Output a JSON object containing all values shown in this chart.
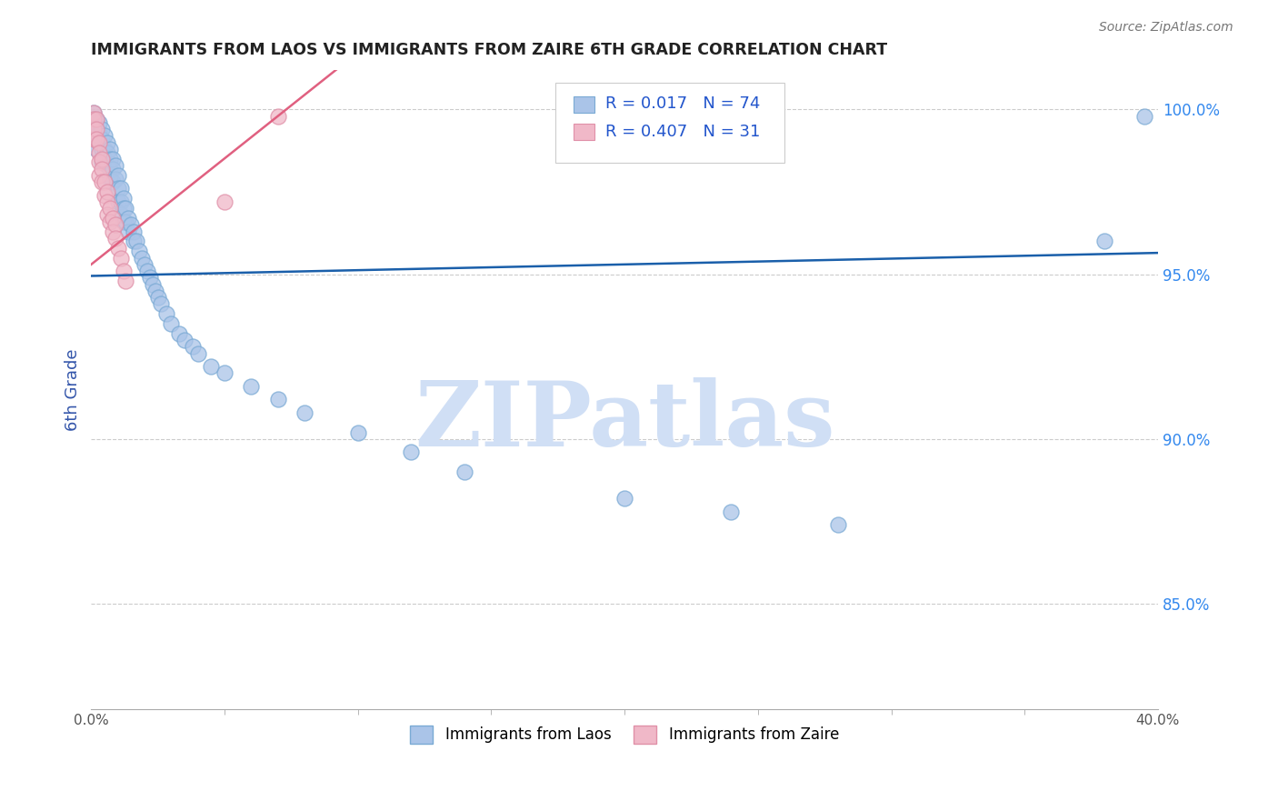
{
  "title": "IMMIGRANTS FROM LAOS VS IMMIGRANTS FROM ZAIRE 6TH GRADE CORRELATION CHART",
  "source": "Source: ZipAtlas.com",
  "ylabel": "6th Grade",
  "ylabel_color": "#3355aa",
  "right_ytick_labels": [
    "100.0%",
    "95.0%",
    "90.0%",
    "85.0%"
  ],
  "right_ytick_values": [
    1.0,
    0.95,
    0.9,
    0.85
  ],
  "x_min": 0.0,
  "x_max": 0.4,
  "y_min": 0.818,
  "y_max": 1.012,
  "legend_r1": "R = 0.017",
  "legend_n1": "N = 74",
  "legend_r2": "R = 0.407",
  "legend_n2": "N = 31",
  "blue_color": "#aac4e8",
  "blue_edge_color": "#7aaad4",
  "pink_color": "#f0b8c8",
  "pink_edge_color": "#e090a8",
  "blue_line_color": "#1a5faa",
  "pink_line_color": "#e06080",
  "watermark_text": "ZIPatlas",
  "watermark_color": "#d0dff5",
  "blue_line_x0": 0.0,
  "blue_line_y0": 0.9495,
  "blue_line_x1": 0.4,
  "blue_line_y1": 0.9565,
  "pink_line_x0": 0.0,
  "pink_line_y0": 0.953,
  "pink_line_x1": 0.07,
  "pink_line_y1": 0.998,
  "blue_points_x": [
    0.001,
    0.001,
    0.001,
    0.002,
    0.002,
    0.002,
    0.002,
    0.003,
    0.003,
    0.003,
    0.004,
    0.004,
    0.004,
    0.004,
    0.005,
    0.005,
    0.005,
    0.006,
    0.006,
    0.006,
    0.007,
    0.007,
    0.007,
    0.007,
    0.008,
    0.008,
    0.008,
    0.009,
    0.009,
    0.01,
    0.01,
    0.01,
    0.011,
    0.011,
    0.011,
    0.012,
    0.012,
    0.012,
    0.013,
    0.013,
    0.014,
    0.014,
    0.015,
    0.016,
    0.016,
    0.017,
    0.018,
    0.019,
    0.02,
    0.021,
    0.022,
    0.023,
    0.024,
    0.025,
    0.026,
    0.028,
    0.03,
    0.033,
    0.035,
    0.038,
    0.04,
    0.045,
    0.05,
    0.06,
    0.07,
    0.08,
    0.1,
    0.12,
    0.14,
    0.2,
    0.24,
    0.28,
    0.38,
    0.395
  ],
  "blue_points_y": [
    0.999,
    0.997,
    0.994,
    0.997,
    0.994,
    0.991,
    0.988,
    0.996,
    0.993,
    0.99,
    0.994,
    0.991,
    0.988,
    0.984,
    0.992,
    0.988,
    0.985,
    0.99,
    0.987,
    0.983,
    0.988,
    0.985,
    0.982,
    0.979,
    0.985,
    0.982,
    0.978,
    0.983,
    0.979,
    0.98,
    0.976,
    0.972,
    0.976,
    0.972,
    0.968,
    0.973,
    0.97,
    0.966,
    0.97,
    0.966,
    0.967,
    0.963,
    0.965,
    0.963,
    0.96,
    0.96,
    0.957,
    0.955,
    0.953,
    0.951,
    0.949,
    0.947,
    0.945,
    0.943,
    0.941,
    0.938,
    0.935,
    0.932,
    0.93,
    0.928,
    0.926,
    0.922,
    0.92,
    0.916,
    0.912,
    0.908,
    0.902,
    0.896,
    0.89,
    0.882,
    0.878,
    0.874,
    0.96,
    0.998
  ],
  "pink_points_x": [
    0.001,
    0.001,
    0.001,
    0.001,
    0.002,
    0.002,
    0.002,
    0.003,
    0.003,
    0.003,
    0.003,
    0.004,
    0.004,
    0.004,
    0.005,
    0.005,
    0.006,
    0.006,
    0.006,
    0.007,
    0.007,
    0.008,
    0.008,
    0.009,
    0.009,
    0.01,
    0.011,
    0.012,
    0.013,
    0.05,
    0.07
  ],
  "pink_points_y": [
    0.999,
    0.997,
    0.994,
    0.991,
    0.997,
    0.994,
    0.991,
    0.99,
    0.987,
    0.984,
    0.98,
    0.985,
    0.982,
    0.978,
    0.978,
    0.974,
    0.975,
    0.972,
    0.968,
    0.97,
    0.966,
    0.967,
    0.963,
    0.965,
    0.961,
    0.958,
    0.955,
    0.951,
    0.948,
    0.972,
    0.998
  ]
}
